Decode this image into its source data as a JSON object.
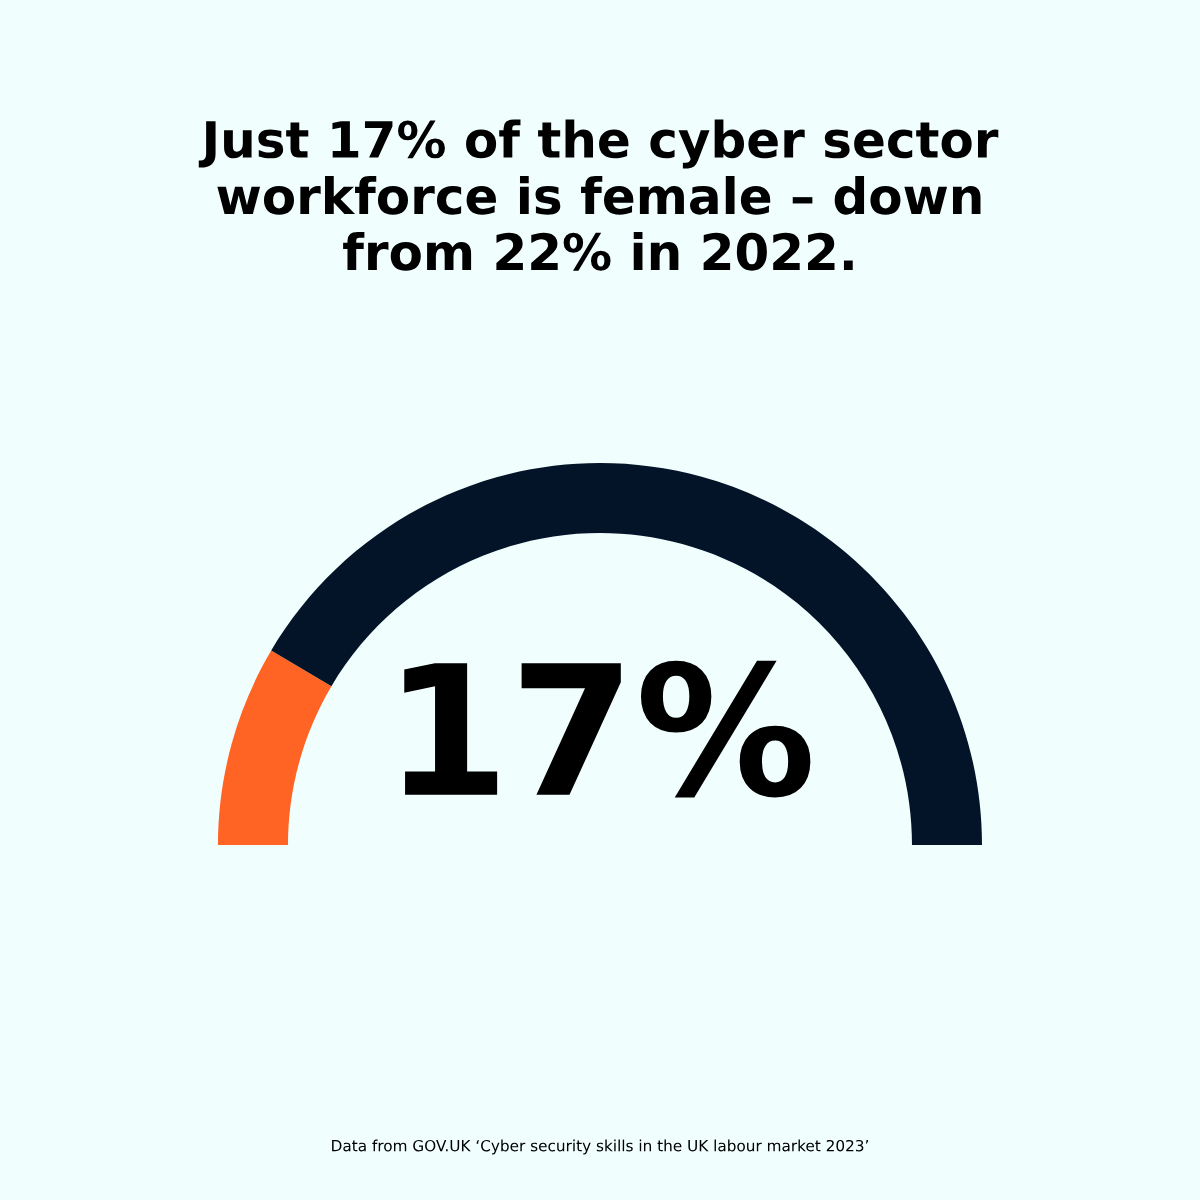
{
  "chart_data": {
    "type": "donut",
    "title": "Just 17% of the cyber sector\nworkforce is female – down\nfrom 22% in 2022.",
    "categories": [
      null,
      null
    ],
    "values": [
      17,
      83
    ],
    "colors": [
      "#ff6424",
      "#041428"
    ],
    "annotations": [
      "17%",
      "Data from GOV.UK ‘Cyber security skills in the UK labour market 2023’"
    ]
  }
}
